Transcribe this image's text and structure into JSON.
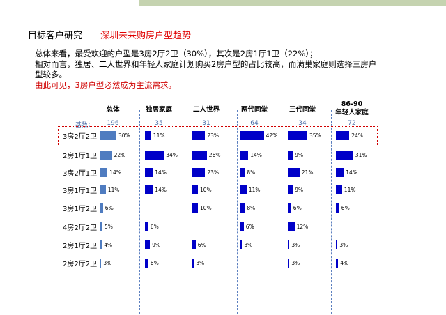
{
  "title": {
    "main": "目标客户研究——",
    "highlight": "深圳未来购房户型趋势"
  },
  "summary": {
    "line1": "总体来看，最受欢迎的户型是3房2厅2卫（30%），其次是2房1厅1卫（22%）；",
    "line2": "相对而言，独居、二人世界和年轻人家庭计划购买2房户型的占比较高，而满巢家庭则选择三房户",
    "line3": "型较多。",
    "conclusion": "由此可见，3房户型必然成为主流需求。"
  },
  "colors": {
    "total_bar": "#4f7cc0",
    "segment_bar": "#0000c8",
    "highlight": "#d00000",
    "base_text": "#4a6da8"
  },
  "base_label": "基数：",
  "columns": [
    {
      "header1": "总体",
      "header2": "",
      "base": "196"
    },
    {
      "header1": "独居家庭",
      "header2": "",
      "base": "35"
    },
    {
      "header1": "二人世界",
      "header2": "",
      "base": "31"
    },
    {
      "header1": "两代同堂",
      "header2": "",
      "base": "64"
    },
    {
      "header1": "三代同堂",
      "header2": "",
      "base": "34"
    },
    {
      "header1": "86-90",
      "header2": "年轻人家庭",
      "base": "72"
    }
  ],
  "rows": [
    {
      "label": "3房2厅2卫",
      "values": [
        30,
        11,
        23,
        42,
        35,
        24
      ],
      "text": [
        "30%",
        "11%",
        "23%",
        "42%",
        "35%",
        "24%"
      ]
    },
    {
      "label": "2房1厅1卫",
      "values": [
        22,
        34,
        26,
        14,
        9,
        31
      ],
      "text": [
        "22%",
        "34%",
        "26%",
        "14%",
        "9%",
        "31%"
      ]
    },
    {
      "label": "3房2厅1卫",
      "values": [
        14,
        14,
        23,
        8,
        21,
        14
      ],
      "text": [
        "14%",
        "14%",
        "23%",
        "8%",
        "21%",
        "14%"
      ]
    },
    {
      "label": "3房1厅1卫",
      "values": [
        11,
        14,
        10,
        11,
        9,
        11
      ],
      "text": [
        "11%",
        "14%",
        "10%",
        "11%",
        "9%",
        "11%"
      ]
    },
    {
      "label": "3房1厅2卫",
      "values": [
        6,
        null,
        10,
        8,
        6,
        6
      ],
      "text": [
        "6%",
        "",
        "10%",
        "8%",
        "6%",
        "6%"
      ]
    },
    {
      "label": "4房2厅2卫",
      "values": [
        5,
        6,
        null,
        6,
        12,
        null
      ],
      "text": [
        "5%",
        "6%",
        "",
        "6%",
        "12%",
        ""
      ]
    },
    {
      "label": "2房1厅2卫",
      "values": [
        4,
        9,
        6,
        3,
        3,
        3
      ],
      "text": [
        "4%",
        "9%",
        "6%",
        "3%",
        "3%",
        "3%"
      ]
    },
    {
      "label": "2房2厅2卫",
      "values": [
        3,
        6,
        3,
        null,
        3,
        4
      ],
      "text": [
        "3%",
        "6%",
        "3%",
        "",
        "3%",
        "4%"
      ]
    }
  ]
}
